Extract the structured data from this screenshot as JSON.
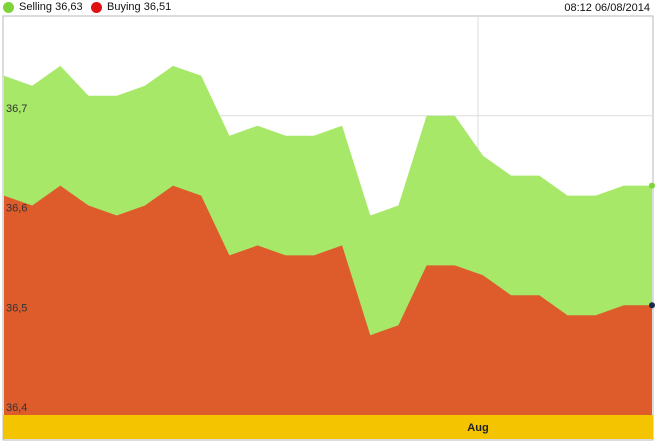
{
  "header": {
    "timestamp": "08:12 06/08/2014"
  },
  "legend": [
    {
      "label": "Selling",
      "value_text": "36,63",
      "color": "#7ed33a"
    },
    {
      "label": "Buying",
      "value_text": "36,51",
      "color": "#e01010"
    }
  ],
  "chart_data": {
    "type": "area",
    "title": "",
    "xlabel": "",
    "ylabel": "",
    "ylim": [
      36.4,
      36.8
    ],
    "y_ticks": [
      "36,4",
      "36,5",
      "36,6",
      "36,7"
    ],
    "y_tick_values": [
      36.4,
      36.5,
      36.6,
      36.7
    ],
    "x_axis_label": "Aug",
    "grid": true,
    "legend_position": "top-left",
    "series": [
      {
        "name": "Selling 36,63",
        "color": "#a8e868",
        "values": [
          36.74,
          36.73,
          36.75,
          36.72,
          36.72,
          36.73,
          36.75,
          36.74,
          36.68,
          36.69,
          36.68,
          36.68,
          36.69,
          36.6,
          36.61,
          36.7,
          36.7,
          36.66,
          36.64,
          36.64,
          36.62,
          36.62,
          36.63,
          36.63
        ]
      },
      {
        "name": "Buying 36,51",
        "color": "#de5c2c",
        "values": [
          36.62,
          36.61,
          36.63,
          36.61,
          36.6,
          36.61,
          36.63,
          36.62,
          36.56,
          36.57,
          36.56,
          36.56,
          36.57,
          36.48,
          36.49,
          36.55,
          36.55,
          36.54,
          36.52,
          36.52,
          36.5,
          36.5,
          36.51,
          36.51
        ]
      }
    ]
  }
}
